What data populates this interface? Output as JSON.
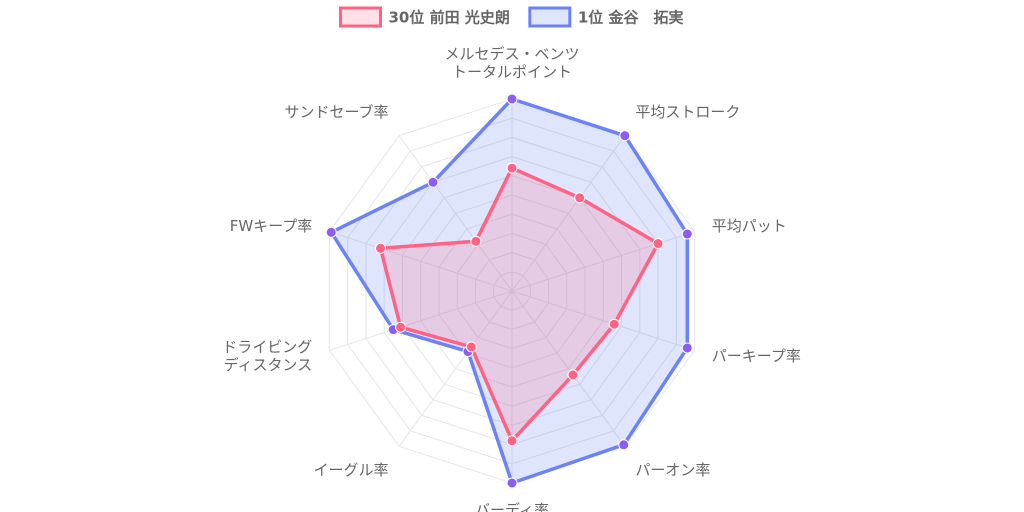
{
  "chart_data": {
    "type": "radar",
    "axes": [
      [
        "メルセデス・ベンツ",
        "トータルポイント"
      ],
      [
        "平均ストローク"
      ],
      [
        "平均パット"
      ],
      [
        "パーキープ率"
      ],
      [
        "パーオン率"
      ],
      [
        "バーディ率"
      ],
      [
        "イーグル率"
      ],
      [
        "ドライビング",
        "ディスタンス"
      ],
      [
        "FWキープ率"
      ],
      [
        "サンドセーブ率"
      ]
    ],
    "r_range": [
      0,
      10
    ],
    "grid": true,
    "legend_position": "top",
    "series": [
      {
        "name": "30位 前田 光史朗",
        "values": [
          6.4,
          6.0,
          8.0,
          5.6,
          5.4,
          7.8,
          3.6,
          6.1,
          7.2,
          3.2
        ],
        "stroke": "#ff6384",
        "fill": "rgba(255,99,132,0.2)"
      },
      {
        "name": "1位 金谷　拓実",
        "values": [
          10.0,
          10.0,
          9.6,
          9.6,
          9.9,
          10.0,
          3.9,
          6.5,
          9.9,
          7.0
        ],
        "stroke": "#6b83f7",
        "fill": "rgba(94,125,246,0.2)"
      }
    ]
  }
}
